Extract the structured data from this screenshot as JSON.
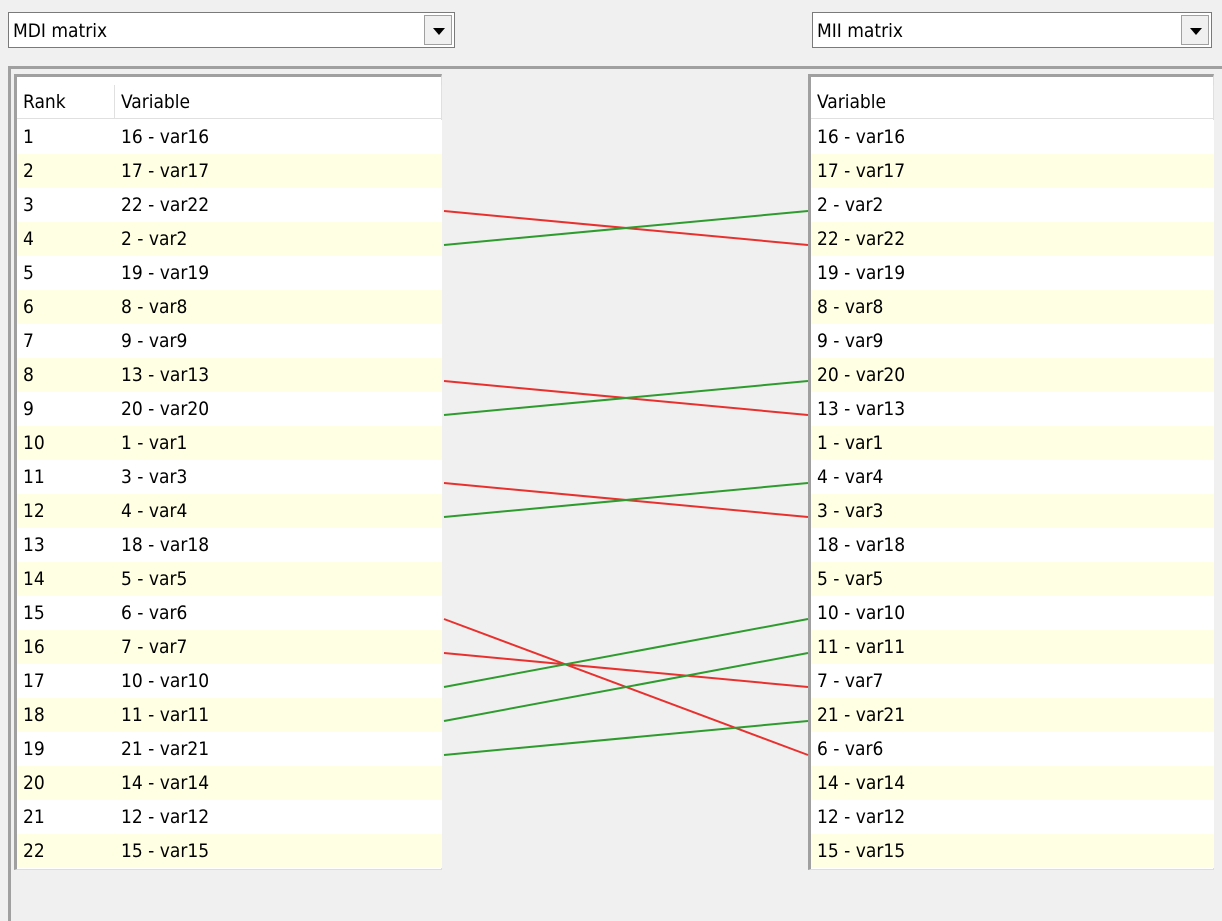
{
  "left_dropdown": {
    "label": "MDI matrix"
  },
  "right_dropdown": {
    "label": "MII matrix"
  },
  "left_table": {
    "headers": [
      "Rank",
      "Variable"
    ],
    "rows": [
      [
        "1",
        "16 - var16"
      ],
      [
        "2",
        "17 - var17"
      ],
      [
        "3",
        "22 - var22"
      ],
      [
        "4",
        "2 - var2"
      ],
      [
        "5",
        "19 - var19"
      ],
      [
        "6",
        "8 - var8"
      ],
      [
        "7",
        "9 - var9"
      ],
      [
        "8",
        "13 - var13"
      ],
      [
        "9",
        "20 - var20"
      ],
      [
        "10",
        "1 - var1"
      ],
      [
        "11",
        "3 - var3"
      ],
      [
        "12",
        "4 - var4"
      ],
      [
        "13",
        "18 - var18"
      ],
      [
        "14",
        "5 - var5"
      ],
      [
        "15",
        "6 - var6"
      ],
      [
        "16",
        "7 - var7"
      ],
      [
        "17",
        "10 - var10"
      ],
      [
        "18",
        "11 - var11"
      ],
      [
        "19",
        "21 - var21"
      ],
      [
        "20",
        "14 - var14"
      ],
      [
        "21",
        "12 - var12"
      ],
      [
        "22",
        "15 - var15"
      ]
    ]
  },
  "right_table": {
    "headers": [
      "Variable"
    ],
    "rows": [
      "16 - var16",
      "17 - var17",
      "2 - var2",
      "22 - var22",
      "19 - var19",
      "8 - var8",
      "9 - var9",
      "20 - var20",
      "13 - var13",
      "1 - var1",
      "4 - var4",
      "3 - var3",
      "18 - var18",
      "5 - var5",
      "10 - var10",
      "11 - var11",
      "7 - var7",
      "21 - var21",
      "6 - var6",
      "14 - var14",
      "12 - var12",
      "15 - var15"
    ]
  },
  "links": {
    "up_color": "#2e9b2e",
    "down_color": "#e8312f"
  }
}
